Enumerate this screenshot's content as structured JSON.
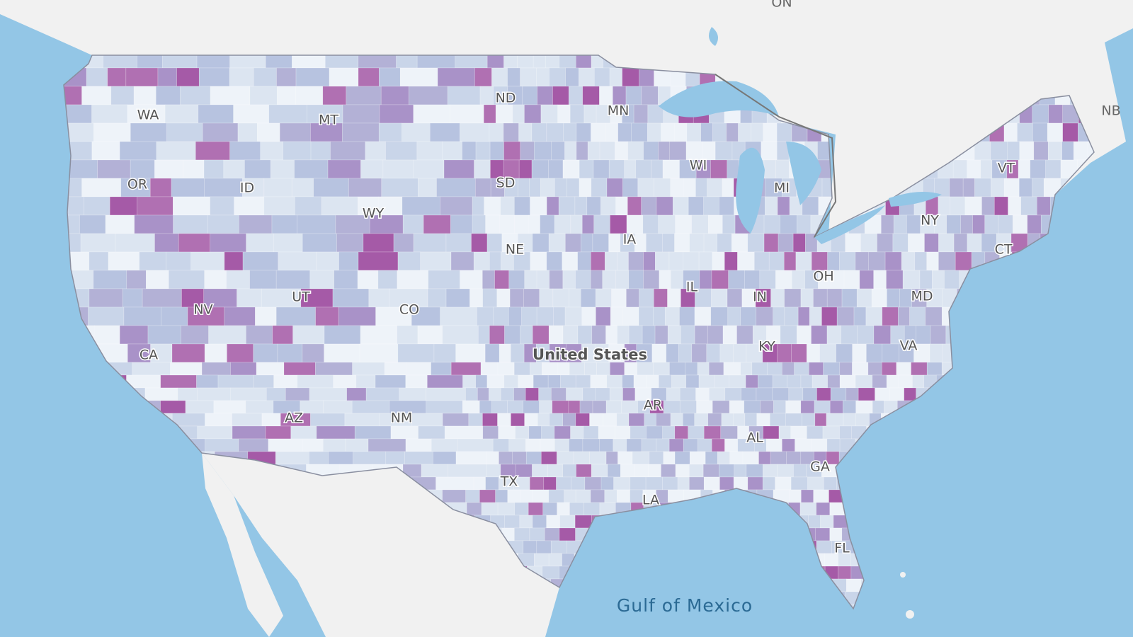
{
  "map": {
    "country_label": "United States",
    "water_label": "Gulf of Mexico",
    "region_labels": [
      "ON",
      "NB"
    ],
    "state_labels": [
      "WA",
      "OR",
      "ID",
      "MT",
      "WY",
      "ND",
      "MN",
      "SD",
      "WI",
      "MI",
      "NE",
      "IA",
      "UT",
      "NV",
      "CA",
      "CO",
      "IL",
      "IN",
      "OH",
      "KY",
      "MD",
      "VA",
      "VT",
      "NY",
      "CT",
      "AZ",
      "NM",
      "AR",
      "TX",
      "LA",
      "AL",
      "GA",
      "FL"
    ]
  }
}
